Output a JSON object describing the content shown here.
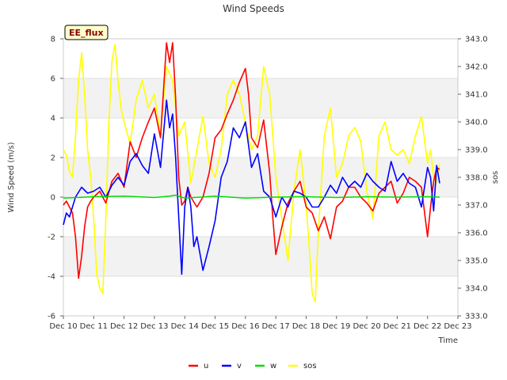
{
  "chart_data": {
    "type": "line",
    "title": "Wind Speeds",
    "xlabel": "Time",
    "ylabel": "Wind Speed (m/s)",
    "y2label": "sos",
    "badge": "EE_flux",
    "xlim": [
      10,
      23
    ],
    "ylim": [
      -6,
      8
    ],
    "y2lim": [
      333.0,
      343.0
    ],
    "x_ticks": [
      10,
      11,
      12,
      13,
      14,
      15,
      16,
      17,
      18,
      19,
      20,
      21,
      22,
      23
    ],
    "x_tick_labels": [
      "Dec 10",
      "Dec 11",
      "Dec 12",
      "Dec 13",
      "Dec 14",
      "Dec 15",
      "Dec 16",
      "Dec 17",
      "Dec 18",
      "Dec 19",
      "Dec 20",
      "Dec 21",
      "Dec 22",
      "Dec 23"
    ],
    "y_ticks": [
      -6,
      -4,
      -2,
      0,
      2,
      4,
      6,
      8
    ],
    "y2_ticks": [
      "333.0",
      "334.0",
      "335.0",
      "336.0",
      "337.0",
      "338.0",
      "339.0",
      "340.0",
      "341.0",
      "342.0",
      "343.0"
    ],
    "grid": "horizontal bands",
    "legend_position": "bottom",
    "colors": {
      "u": "#ff0000",
      "v": "#0000ff",
      "w": "#00dd00",
      "sos": "#ffff00",
      "band": "#f2f2f2"
    },
    "series": [
      {
        "name": "u",
        "axis": "left",
        "x": [
          10.0,
          10.1,
          10.2,
          10.3,
          10.4,
          10.5,
          10.6,
          10.7,
          10.8,
          10.9,
          11.0,
          11.2,
          11.4,
          11.6,
          11.8,
          12.0,
          12.2,
          12.4,
          12.6,
          12.8,
          13.0,
          13.2,
          13.4,
          13.5,
          13.6,
          13.7,
          13.8,
          13.9,
          14.0,
          14.1,
          14.2,
          14.4,
          14.6,
          14.8,
          15.0,
          15.2,
          15.4,
          15.6,
          15.8,
          16.0,
          16.1,
          16.2,
          16.4,
          16.6,
          16.8,
          16.9,
          17.0,
          17.2,
          17.4,
          17.6,
          17.8,
          18.0,
          18.2,
          18.4,
          18.6,
          18.8,
          19.0,
          19.2,
          19.4,
          19.6,
          19.8,
          20.0,
          20.2,
          20.4,
          20.6,
          20.8,
          21.0,
          21.2,
          21.4,
          21.6,
          21.8,
          22.0,
          22.1,
          22.2,
          22.3,
          22.4
        ],
        "y": [
          -0.4,
          -0.2,
          -0.5,
          -0.8,
          -2.0,
          -4.1,
          -3.0,
          -1.5,
          -0.5,
          -0.2,
          0.0,
          0.3,
          -0.3,
          0.8,
          1.2,
          0.5,
          2.8,
          2.0,
          3.0,
          3.8,
          4.5,
          3.0,
          7.8,
          6.8,
          7.8,
          5.0,
          1.0,
          -0.4,
          -0.2,
          0.5,
          0.0,
          -0.5,
          0.0,
          1.2,
          3.0,
          3.4,
          4.2,
          4.9,
          5.8,
          6.5,
          5.2,
          3.0,
          2.5,
          3.9,
          1.2,
          -1.0,
          -2.9,
          -1.5,
          -0.3,
          0.3,
          0.8,
          -0.5,
          -0.8,
          -1.7,
          -1.0,
          -2.1,
          -0.5,
          -0.2,
          0.5,
          0.5,
          0.0,
          -0.3,
          -0.7,
          0.2,
          0.5,
          0.8,
          -0.3,
          0.2,
          1.0,
          0.8,
          0.5,
          -2.0,
          -0.5,
          0.8,
          1.5,
          1.4
        ]
      },
      {
        "name": "v",
        "axis": "left",
        "x": [
          10.0,
          10.1,
          10.2,
          10.4,
          10.6,
          10.8,
          11.0,
          11.2,
          11.4,
          11.6,
          11.8,
          12.0,
          12.2,
          12.4,
          12.6,
          12.8,
          13.0,
          13.2,
          13.4,
          13.5,
          13.6,
          13.7,
          13.8,
          13.9,
          14.0,
          14.1,
          14.2,
          14.3,
          14.4,
          14.6,
          14.8,
          15.0,
          15.2,
          15.4,
          15.6,
          15.8,
          16.0,
          16.2,
          16.4,
          16.6,
          16.8,
          17.0,
          17.2,
          17.4,
          17.6,
          17.8,
          18.0,
          18.2,
          18.4,
          18.6,
          18.8,
          19.0,
          19.2,
          19.4,
          19.6,
          19.8,
          20.0,
          20.2,
          20.4,
          20.6,
          20.8,
          21.0,
          21.2,
          21.4,
          21.6,
          21.8,
          22.0,
          22.1,
          22.2,
          22.3,
          22.4
        ],
        "y": [
          -1.4,
          -0.8,
          -1.0,
          0.0,
          0.5,
          0.2,
          0.3,
          0.5,
          0.0,
          0.6,
          1.0,
          0.6,
          1.8,
          2.2,
          1.6,
          1.2,
          3.2,
          1.5,
          4.9,
          3.5,
          4.2,
          2.0,
          -1.0,
          -3.9,
          -0.5,
          0.5,
          -0.5,
          -2.5,
          -2.0,
          -3.7,
          -2.5,
          -1.2,
          1.0,
          1.8,
          3.5,
          3.0,
          3.8,
          1.5,
          2.2,
          0.3,
          0.0,
          -1.0,
          0.0,
          -0.5,
          0.3,
          0.2,
          0.0,
          -0.5,
          -0.5,
          0.0,
          0.6,
          0.2,
          1.0,
          0.5,
          0.8,
          0.5,
          1.2,
          0.8,
          0.5,
          0.3,
          1.8,
          0.8,
          1.2,
          0.7,
          0.5,
          -0.5,
          1.5,
          1.0,
          -0.7,
          1.6,
          0.7
        ]
      },
      {
        "name": "w",
        "axis": "left",
        "x": [
          10.0,
          11.0,
          12.0,
          13.0,
          13.5,
          13.7,
          14.0,
          15.0,
          16.0,
          17.0,
          18.0,
          19.0,
          20.0,
          21.0,
          22.0,
          22.4
        ],
        "y": [
          -0.05,
          0.02,
          0.05,
          -0.02,
          0.05,
          0.1,
          -0.05,
          0.05,
          -0.05,
          0.0,
          0.02,
          -0.02,
          0.02,
          0.0,
          0.02,
          0.0
        ]
      },
      {
        "name": "sos",
        "axis": "right",
        "x": [
          10.0,
          10.1,
          10.2,
          10.3,
          10.4,
          10.5,
          10.6,
          10.7,
          10.8,
          10.9,
          11.0,
          11.1,
          11.2,
          11.3,
          11.4,
          11.5,
          11.6,
          11.7,
          11.8,
          11.9,
          12.0,
          12.2,
          12.4,
          12.6,
          12.8,
          13.0,
          13.2,
          13.4,
          13.6,
          13.8,
          14.0,
          14.2,
          14.4,
          14.6,
          14.8,
          15.0,
          15.2,
          15.4,
          15.6,
          15.8,
          16.0,
          16.2,
          16.4,
          16.6,
          16.8,
          17.0,
          17.2,
          17.4,
          17.6,
          17.8,
          18.0,
          18.1,
          18.2,
          18.3,
          18.4,
          18.6,
          18.8,
          19.0,
          19.2,
          19.4,
          19.6,
          19.8,
          20.0,
          20.2,
          20.4,
          20.6,
          20.8,
          21.0,
          21.2,
          21.4,
          21.6,
          21.8,
          22.0,
          22.1,
          22.2,
          22.3,
          22.4
        ],
        "y": [
          339.0,
          338.8,
          338.2,
          338.0,
          339.5,
          341.5,
          342.5,
          341.0,
          339.0,
          338.0,
          336.5,
          334.5,
          334.0,
          333.8,
          336.5,
          340.0,
          342.2,
          342.8,
          341.5,
          340.5,
          340.0,
          339.2,
          340.8,
          341.5,
          340.5,
          341.0,
          339.5,
          342.0,
          341.5,
          339.5,
          340.0,
          337.8,
          339.0,
          340.2,
          338.5,
          338.0,
          339.0,
          341.0,
          341.5,
          341.0,
          340.0,
          339.0,
          339.5,
          342.0,
          341.0,
          338.0,
          336.5,
          335.0,
          337.5,
          339.0,
          337.0,
          335.5,
          333.8,
          333.5,
          336.0,
          339.5,
          340.5,
          338.0,
          338.5,
          339.5,
          339.8,
          339.3,
          337.5,
          336.5,
          339.5,
          340.0,
          339.0,
          338.8,
          339.0,
          338.5,
          339.5,
          340.2,
          338.5,
          339.0,
          338.0,
          337.8,
          338.5
        ]
      }
    ]
  }
}
